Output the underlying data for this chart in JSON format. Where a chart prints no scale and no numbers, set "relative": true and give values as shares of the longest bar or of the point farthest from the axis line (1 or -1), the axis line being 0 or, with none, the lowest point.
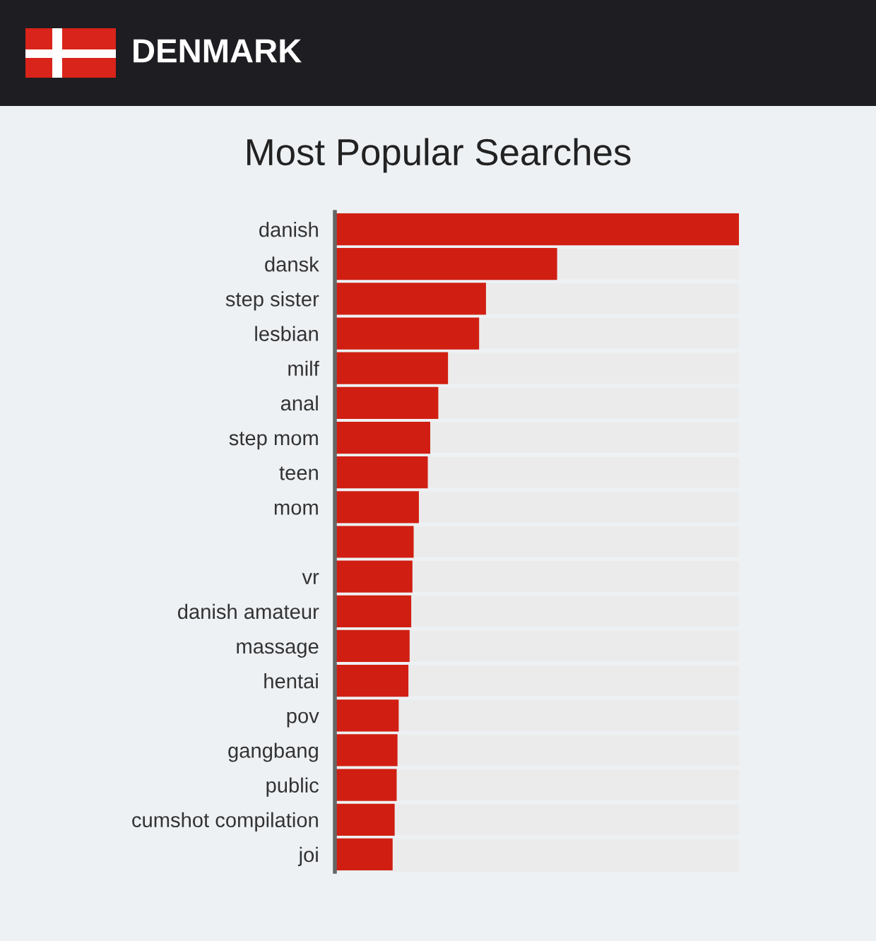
{
  "chart_data": {
    "type": "bar",
    "orientation": "horizontal",
    "relative": true,
    "title": "Most Popular Searches",
    "subtitle": "DENMARK",
    "categories": [
      "danish",
      "dansk",
      "step sister",
      "lesbian",
      "milf",
      "anal",
      "step mom",
      "teen",
      "mom",
      null,
      "vr",
      "danish amateur",
      "massage",
      "hentai",
      "pov",
      "gangbang",
      "public",
      "cumshot compilation",
      "joi"
    ],
    "values": [
      1.0,
      0.55,
      0.374,
      0.357,
      0.28,
      0.256,
      0.236,
      0.23,
      0.208,
      0.195,
      0.192,
      0.189,
      0.185,
      0.182,
      0.158,
      0.155,
      0.153,
      0.148,
      0.143
    ],
    "color": "#d01f12",
    "grid": "y"
  }
}
